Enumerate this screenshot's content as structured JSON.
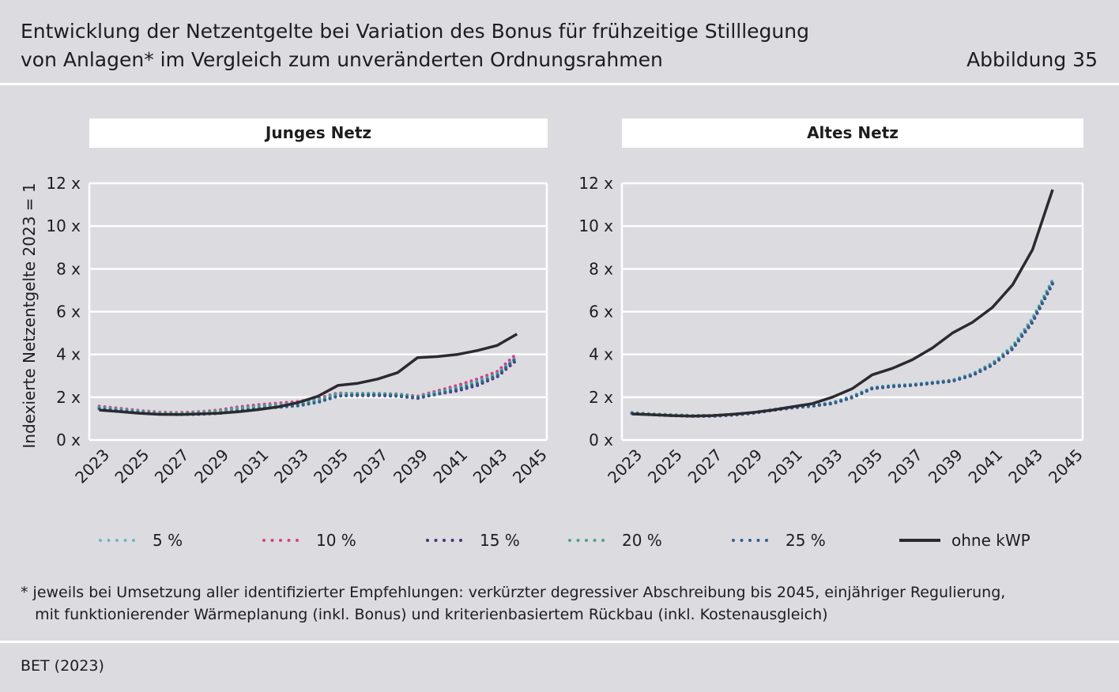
{
  "header": {
    "title_line1": "Entwicklung der Netzentgelte bei Variation des Bonus für frühzeitige Stilllegung",
    "title_line2": "von Anlagen* im Vergleich zum unveränderten Ordnungsrahmen",
    "figure_number": "Abbildung 35"
  },
  "footnote": {
    "line1": "* jeweils bei Umsetzung aller identifizierter Empfehlungen: verkürzter degressiver Abschreibung bis 2045, einjähriger Regulierung,",
    "line2": "   mit funktionierender Wärmeplanung (inkl. Bonus) und kriterienbasiertem Rückbau (inkl. Kostenausgleich)"
  },
  "source": "BET (2023)",
  "colors": {
    "background": "#dcdbe0",
    "grid": "#ffffff",
    "s5": "#6fb3c8",
    "s10": "#d63e8c",
    "s15": "#4b2f7a",
    "s20": "#4e9e92",
    "s25": "#2f5f8e",
    "ohne": "#2a2a30"
  },
  "legend": [
    {
      "key": "s5",
      "label": "5 %",
      "style": "dotted"
    },
    {
      "key": "s10",
      "label": "10 %",
      "style": "dotted"
    },
    {
      "key": "s15",
      "label": "15 %",
      "style": "dotted"
    },
    {
      "key": "s20",
      "label": "20 %",
      "style": "dotted"
    },
    {
      "key": "s25",
      "label": "25 %",
      "style": "dotted"
    },
    {
      "key": "ohne",
      "label": "ohne kWP",
      "style": "solid"
    }
  ],
  "chart_data": [
    {
      "type": "line",
      "title": "Junges Netz",
      "ylabel": "Indexierte Netzentgelte 2023 = 1",
      "ylim": [
        0,
        12
      ],
      "y_ticks": [
        0,
        2,
        4,
        6,
        8,
        10,
        12
      ],
      "y_tick_labels": [
        "0 x",
        "2 x",
        "4 x",
        "6 x",
        "8 x",
        "10 x",
        "12 x"
      ],
      "x_ticks": [
        "2023",
        "2025",
        "2027",
        "2029",
        "2031",
        "2033",
        "2035",
        "2037",
        "2039",
        "2041",
        "2043",
        "2045"
      ],
      "years": [
        2023,
        2024,
        2025,
        2026,
        2027,
        2028,
        2029,
        2030,
        2031,
        2032,
        2033,
        2034,
        2035,
        2036,
        2037,
        2038,
        2039,
        2040,
        2041,
        2042,
        2043,
        2044
      ],
      "series": [
        {
          "name": "5 %",
          "key": "s5",
          "values": [
            1.5,
            1.42,
            1.33,
            1.26,
            1.24,
            1.28,
            1.33,
            1.45,
            1.55,
            1.62,
            1.7,
            1.85,
            2.15,
            2.15,
            2.15,
            2.12,
            2.0,
            2.2,
            2.4,
            2.7,
            3.05,
            3.9
          ]
        },
        {
          "name": "10 %",
          "key": "s10",
          "values": [
            1.58,
            1.48,
            1.38,
            1.3,
            1.28,
            1.32,
            1.4,
            1.55,
            1.65,
            1.72,
            1.8,
            1.95,
            2.2,
            2.15,
            2.15,
            2.15,
            2.05,
            2.3,
            2.55,
            2.85,
            3.2,
            4.05
          ]
        },
        {
          "name": "15 %",
          "key": "s15",
          "values": [
            1.48,
            1.38,
            1.3,
            1.22,
            1.2,
            1.22,
            1.25,
            1.38,
            1.48,
            1.55,
            1.62,
            1.78,
            2.08,
            2.08,
            2.08,
            2.05,
            1.95,
            2.15,
            2.3,
            2.55,
            2.95,
            3.75
          ]
        },
        {
          "name": "20 %",
          "key": "s20",
          "values": [
            1.52,
            1.44,
            1.35,
            1.27,
            1.25,
            1.29,
            1.35,
            1.48,
            1.58,
            1.65,
            1.74,
            1.88,
            2.18,
            2.18,
            2.18,
            2.14,
            2.02,
            2.24,
            2.44,
            2.74,
            3.1,
            3.9
          ]
        },
        {
          "name": "25 %",
          "key": "s25",
          "values": [
            1.46,
            1.37,
            1.29,
            1.21,
            1.19,
            1.2,
            1.24,
            1.36,
            1.46,
            1.53,
            1.6,
            1.76,
            2.05,
            2.1,
            2.1,
            2.06,
            1.97,
            2.14,
            2.36,
            2.62,
            3.0,
            3.85
          ]
        },
        {
          "name": "ohne kWP",
          "key": "ohne",
          "values": [
            1.4,
            1.33,
            1.25,
            1.2,
            1.19,
            1.22,
            1.25,
            1.32,
            1.42,
            1.55,
            1.75,
            2.05,
            2.55,
            2.65,
            2.85,
            3.15,
            3.85,
            3.9,
            4.0,
            4.18,
            4.42,
            4.95
          ]
        }
      ]
    },
    {
      "type": "line",
      "title": "Altes Netz",
      "ylabel": "",
      "ylim": [
        0,
        12
      ],
      "y_ticks": [
        0,
        2,
        4,
        6,
        8,
        10,
        12
      ],
      "y_tick_labels": [
        "0 x",
        "2 x",
        "4 x",
        "6 x",
        "8 x",
        "10 x",
        "12 x"
      ],
      "x_ticks": [
        "2023",
        "2025",
        "2027",
        "2029",
        "2031",
        "2033",
        "2035",
        "2037",
        "2039",
        "2041",
        "2043",
        "2045"
      ],
      "years": [
        2023,
        2024,
        2025,
        2026,
        2027,
        2028,
        2029,
        2030,
        2031,
        2032,
        2033,
        2034,
        2035,
        2036,
        2037,
        2038,
        2039,
        2040,
        2041,
        2042,
        2043,
        2044
      ],
      "series": [
        {
          "name": "5 %",
          "key": "s5",
          "values": [
            1.28,
            1.22,
            1.18,
            1.15,
            1.15,
            1.2,
            1.28,
            1.42,
            1.55,
            1.62,
            1.75,
            2.05,
            2.45,
            2.55,
            2.6,
            2.7,
            2.8,
            3.1,
            3.6,
            4.4,
            5.7,
            7.5
          ]
        },
        {
          "name": "10 %",
          "key": "s10",
          "values": [
            1.26,
            1.2,
            1.16,
            1.13,
            1.13,
            1.18,
            1.26,
            1.4,
            1.52,
            1.6,
            1.72,
            2.0,
            2.42,
            2.52,
            2.58,
            2.68,
            2.78,
            3.05,
            3.55,
            4.3,
            5.6,
            7.4
          ]
        },
        {
          "name": "15 %",
          "key": "s15",
          "values": [
            1.24,
            1.18,
            1.14,
            1.11,
            1.11,
            1.16,
            1.24,
            1.38,
            1.5,
            1.58,
            1.7,
            1.98,
            2.4,
            2.5,
            2.55,
            2.65,
            2.75,
            3.02,
            3.5,
            4.25,
            5.5,
            7.3
          ]
        },
        {
          "name": "20 %",
          "key": "s20",
          "values": [
            1.27,
            1.21,
            1.17,
            1.14,
            1.14,
            1.19,
            1.27,
            1.41,
            1.54,
            1.61,
            1.74,
            2.03,
            2.44,
            2.54,
            2.59,
            2.69,
            2.79,
            3.08,
            3.58,
            4.35,
            5.65,
            7.45
          ]
        },
        {
          "name": "25 %",
          "key": "s25",
          "values": [
            1.25,
            1.19,
            1.15,
            1.12,
            1.12,
            1.17,
            1.25,
            1.39,
            1.51,
            1.59,
            1.71,
            1.99,
            2.41,
            2.51,
            2.56,
            2.66,
            2.76,
            3.03,
            3.52,
            4.28,
            5.55,
            7.35
          ]
        },
        {
          "name": "ohne kWP",
          "key": "ohne",
          "values": [
            1.22,
            1.18,
            1.14,
            1.12,
            1.14,
            1.2,
            1.28,
            1.4,
            1.55,
            1.7,
            2.0,
            2.4,
            3.05,
            3.35,
            3.75,
            4.3,
            5.0,
            5.5,
            6.2,
            7.25,
            8.9,
            11.7
          ]
        }
      ]
    }
  ]
}
